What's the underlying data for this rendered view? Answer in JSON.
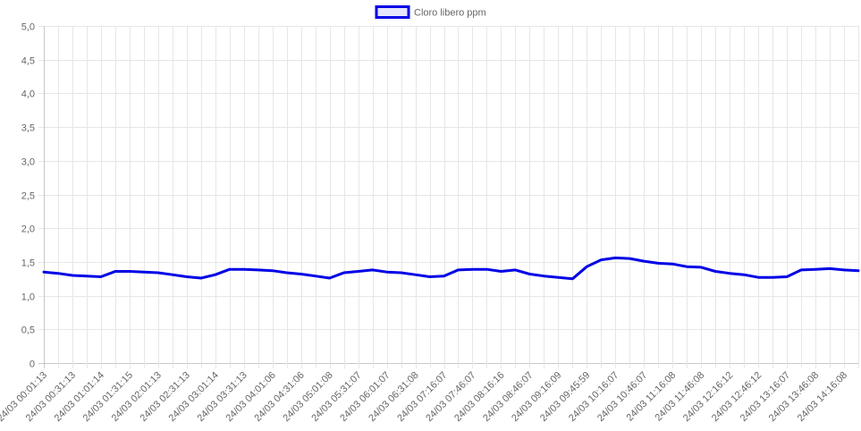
{
  "chart_data": {
    "type": "line",
    "legend": {
      "position": "top",
      "label": "Cloro libero ppm"
    },
    "ylim": [
      0,
      5
    ],
    "yticks": [
      "0",
      "0,5",
      "1,0",
      "1,5",
      "2,0",
      "2,5",
      "3,0",
      "3,5",
      "4,0",
      "4,5",
      "5,0"
    ],
    "grid": true,
    "xtick_labels": [
      "24/03 00:01:13",
      "24/03 00:31:13",
      "24/03 01:01:14",
      "24/03 01:31:15",
      "24/03 02:01:13",
      "24/03 02:31:13",
      "24/03 03:01:14",
      "24/03 03:31:13",
      "24/03 04:01:06",
      "24/03 04:31:06",
      "24/03 05:01:08",
      "24/03 05:31:07",
      "24/03 06:01:07",
      "24/03 06:31:08",
      "24/03 07:16:07",
      "24/03 07:46:07",
      "24/03 08:16:16",
      "24/03 08:46:07",
      "24/03 09:16:09",
      "24/03 09:45:59",
      "24/03 10:16:07",
      "24/03 10:46:07",
      "24/03 11:16:08",
      "24/03 11:46:08",
      "24/03 12:16:12",
      "24/03 12:46:12",
      "24/03 13:16:07",
      "24/03 13:46:08",
      "24/03 14:16:08"
    ],
    "series": [
      {
        "name": "Cloro libero ppm",
        "color": "#0000e6",
        "values": [
          1.35,
          1.33,
          1.3,
          1.29,
          1.28,
          1.36,
          1.36,
          1.35,
          1.34,
          1.31,
          1.28,
          1.26,
          1.31,
          1.39,
          1.39,
          1.38,
          1.37,
          1.34,
          1.32,
          1.29,
          1.26,
          1.34,
          1.36,
          1.38,
          1.35,
          1.34,
          1.31,
          1.28,
          1.29,
          1.38,
          1.39,
          1.39,
          1.36,
          1.38,
          1.32,
          1.29,
          1.27,
          1.25,
          1.43,
          1.53,
          1.56,
          1.55,
          1.51,
          1.48,
          1.47,
          1.43,
          1.42,
          1.36,
          1.33,
          1.31,
          1.27,
          1.27,
          1.28,
          1.38,
          1.39,
          1.4,
          1.38,
          1.37
        ]
      }
    ]
  }
}
